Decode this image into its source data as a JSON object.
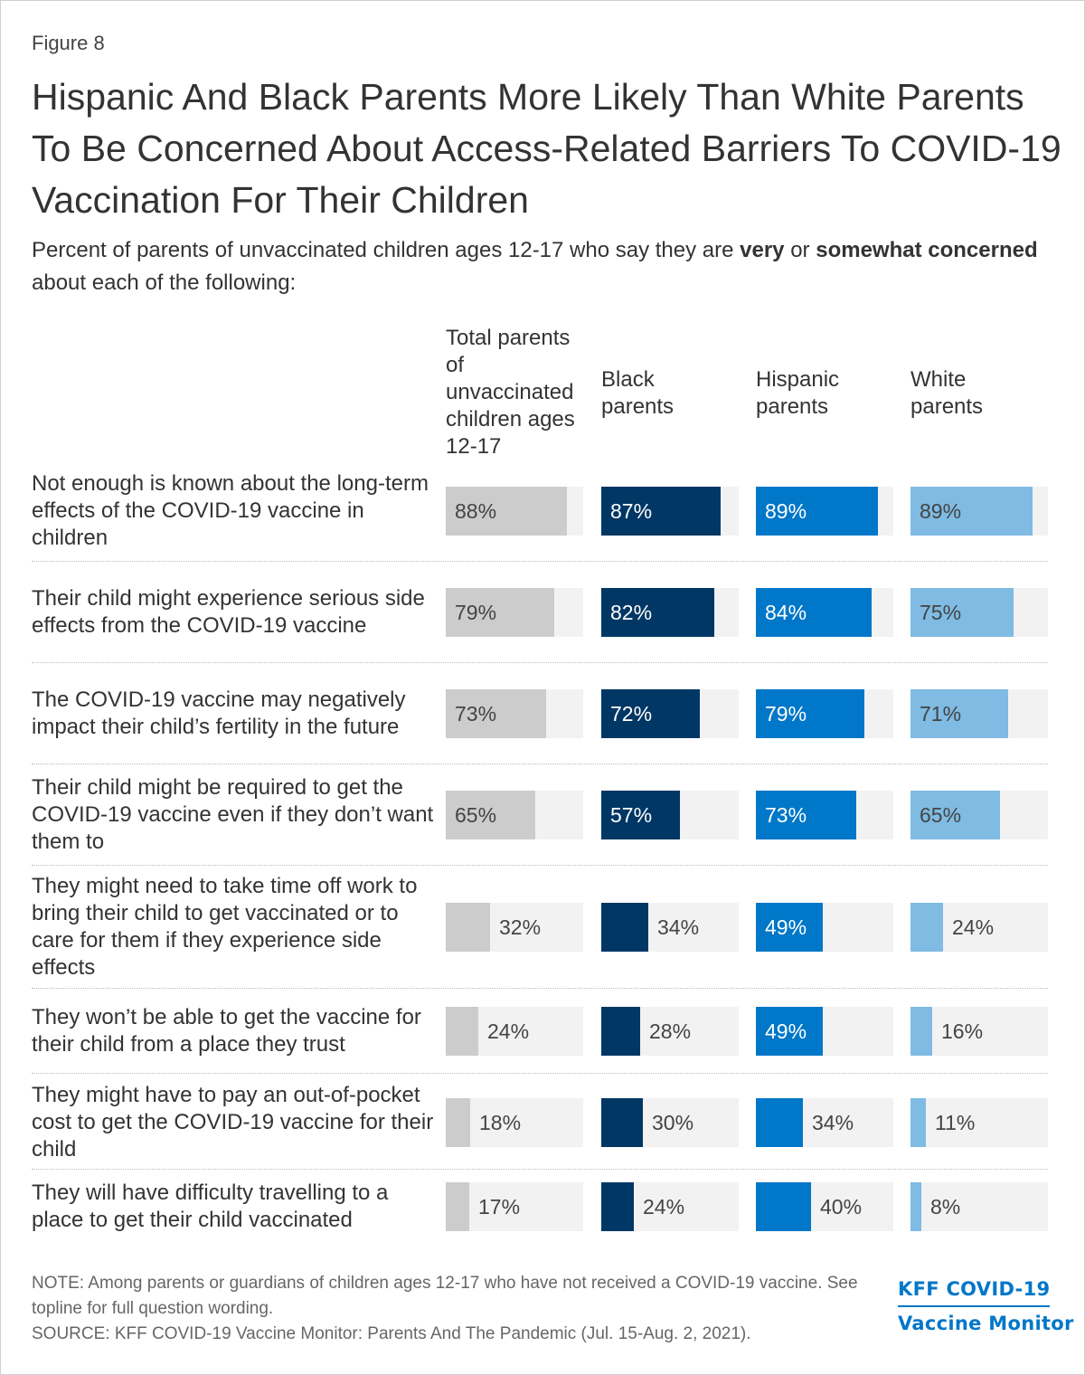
{
  "figure_label": "Figure 8",
  "title": "Hispanic And Black Parents More Likely Than White Parents To Be Concerned About Access-Related Barriers To COVID-19 Vaccination For Their Children",
  "subtitle": {
    "part1": "Percent of parents of unvaccinated children ages 12-17 who say they are ",
    "bold1": "very",
    "part2": " or ",
    "bold2": "somewhat concerned",
    "part3": " about each of the following:"
  },
  "colors": {
    "total": "#cccccc",
    "black": "#003764",
    "hispanic": "#0077c8",
    "white": "#7fbbe3",
    "track": "#f2f2f2"
  },
  "chart_data": {
    "type": "bar",
    "orientation": "horizontal",
    "xlim": [
      0,
      100
    ],
    "unit": "%",
    "categories": [
      "Not enough is known about the long-term effects of the COVID-19 vaccine in children",
      "Their child might experience serious side effects from the COVID-19 vaccine",
      "The COVID-19 vaccine may negatively impact their child’s fertility in the future",
      "Their child might be required to get the COVID-19 vaccine even if they don’t want them to",
      "They might need to take time off work to bring their child to get vaccinated or to care for them if they experience side effects",
      "They won’t be able to get the vaccine for their child from a place they trust",
      "They might have to pay an out-of-pocket cost to get the COVID-19 vaccine for their child",
      "They will have difficulty travelling to a place to get their child vaccinated"
    ],
    "series": [
      {
        "name": "Total parents of unvaccinated children ages 12-17",
        "color": "#cccccc",
        "values": [
          88,
          79,
          73,
          65,
          32,
          24,
          18,
          17
        ]
      },
      {
        "name": "Black parents",
        "color": "#003764",
        "values": [
          87,
          82,
          72,
          57,
          34,
          28,
          30,
          24
        ]
      },
      {
        "name": "Hispanic parents",
        "color": "#0077c8",
        "values": [
          89,
          84,
          79,
          73,
          49,
          49,
          34,
          40
        ]
      },
      {
        "name": "White parents",
        "color": "#7fbbe3",
        "values": [
          89,
          75,
          71,
          65,
          24,
          16,
          11,
          8
        ]
      }
    ]
  },
  "note": "NOTE: Among parents or guardians of children ages 12-17 who have not received a COVID-19 vaccine. See topline for full question wording.",
  "source": "SOURCE: KFF COVID-19 Vaccine Monitor: Parents And The Pandemic (Jul. 15-Aug. 2, 2021).",
  "logo": {
    "line1": "KFF COVID-19",
    "line2": "Vaccine Monitor"
  }
}
